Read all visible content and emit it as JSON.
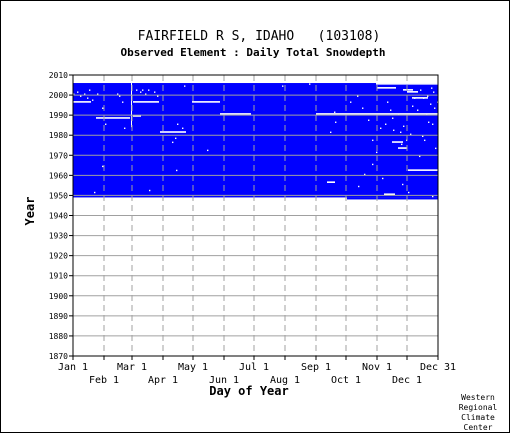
{
  "chart_data": {
    "type": "heatmap",
    "title": "FAIRFIELD R S, IDAHO   (103108)",
    "subtitle": "Observed Element : Daily Total Snowdepth",
    "xlabel": "Day of Year",
    "ylabel": "Year",
    "x_range": [
      1,
      365
    ],
    "ylim": [
      1870,
      2010
    ],
    "y_ticks": [
      2010,
      2000,
      1990,
      1980,
      1970,
      1960,
      1950,
      1940,
      1930,
      1920,
      1910,
      1900,
      1890,
      1880,
      1870
    ],
    "x_ticks_upper": [
      {
        "label": "Jan 1",
        "day": 1
      },
      {
        "label": "Mar 1",
        "day": 60
      },
      {
        "label": "May 1",
        "day": 121
      },
      {
        "label": "Jul 1",
        "day": 182
      },
      {
        "label": "Sep 1",
        "day": 244
      },
      {
        "label": "Nov 1",
        "day": 305
      },
      {
        "label": "Dec 31",
        "day": 365
      }
    ],
    "x_ticks_lower": [
      {
        "label": "Feb 1",
        "day": 32
      },
      {
        "label": "Apr 1",
        "day": 91
      },
      {
        "label": "Jun 1",
        "day": 152
      },
      {
        "label": "Aug 1",
        "day": 213
      },
      {
        "label": "Oct 1",
        "day": 274
      },
      {
        "label": "Dec 1",
        "day": 335
      }
    ],
    "grid": true,
    "data_color": "#0000ff",
    "record": {
      "start_year": 1948,
      "end_year": 2005
    },
    "end_partial": {
      "year": 1948,
      "from_day": 275
    },
    "missing_year_segments": [
      {
        "year": 1962,
        "from_day": 336,
        "to_day": 365
      },
      {
        "year": 1956,
        "from_day": 255,
        "to_day": 262
      },
      {
        "year": 1990,
        "from_day": 148,
        "to_day": 178
      },
      {
        "year": 1990,
        "from_day": 244,
        "to_day": 365
      },
      {
        "year": 2005,
        "from_day": 304,
        "to_day": 365
      },
      {
        "year": 1988,
        "from_day": 24,
        "to_day": 57
      },
      {
        "year": 1996,
        "from_day": 1,
        "to_day": 18
      },
      {
        "year": 1996,
        "from_day": 61,
        "to_day": 86
      },
      {
        "year": 1996,
        "from_day": 120,
        "to_day": 147
      },
      {
        "year": 1981,
        "from_day": 88,
        "to_day": 113
      },
      {
        "year": 2003,
        "from_day": 305,
        "to_day": 323
      },
      {
        "year": 2002,
        "from_day": 331,
        "to_day": 340
      },
      {
        "year": 2001,
        "from_day": 335,
        "to_day": 345
      },
      {
        "year": 1998,
        "from_day": 340,
        "to_day": 355
      },
      {
        "year": 1976,
        "from_day": 320,
        "to_day": 330
      },
      {
        "year": 1973,
        "from_day": 326,
        "to_day": 334
      },
      {
        "year": 1950,
        "from_day": 312,
        "to_day": 322
      },
      {
        "year": 1989,
        "from_day": 61,
        "to_day": 68
      }
    ],
    "missing_day_columns": [
      {
        "day": 59,
        "from_year": 1984,
        "to_year": 2005
      }
    ],
    "missing_points": [
      [
        1,
        2000
      ],
      [
        5,
        2001
      ],
      [
        8,
        1999
      ],
      [
        12,
        2000
      ],
      [
        15,
        1998
      ],
      [
        17,
        2002
      ],
      [
        20,
        1997
      ],
      [
        25,
        2000
      ],
      [
        30,
        1993
      ],
      [
        33,
        1985
      ],
      [
        22,
        1951
      ],
      [
        30,
        1964
      ],
      [
        45,
        2000
      ],
      [
        47,
        1999
      ],
      [
        50,
        1996
      ],
      [
        52,
        1983
      ],
      [
        64,
        2002
      ],
      [
        68,
        2001
      ],
      [
        70,
        2002
      ],
      [
        73,
        2000
      ],
      [
        76,
        2002
      ],
      [
        82,
        2001
      ],
      [
        85,
        1999
      ],
      [
        77,
        1952
      ],
      [
        100,
        1976
      ],
      [
        104,
        1962
      ],
      [
        103,
        1978
      ],
      [
        105,
        1985
      ],
      [
        110,
        1983
      ],
      [
        112,
        2004
      ],
      [
        135,
        1972
      ],
      [
        210,
        2004
      ],
      [
        237,
        2005
      ],
      [
        258,
        1981
      ],
      [
        262,
        1991
      ],
      [
        263,
        1986
      ],
      [
        278,
        1996
      ],
      [
        285,
        1999
      ],
      [
        290,
        1993
      ],
      [
        296,
        1987
      ],
      [
        300,
        1977
      ],
      [
        304,
        1971
      ],
      [
        308,
        1983
      ],
      [
        313,
        1985
      ],
      [
        315,
        1996
      ],
      [
        318,
        1992
      ],
      [
        320,
        1988
      ],
      [
        326,
        1990
      ],
      [
        328,
        1981
      ],
      [
        331,
        1984
      ],
      [
        334,
        1977
      ],
      [
        338,
        1980
      ],
      [
        340,
        1994
      ],
      [
        342,
        1998
      ],
      [
        345,
        1992
      ],
      [
        350,
        1979
      ],
      [
        352,
        1977
      ],
      [
        354,
        1990
      ],
      [
        356,
        1986
      ],
      [
        358,
        1995
      ],
      [
        360,
        1985
      ],
      [
        362,
        1993
      ],
      [
        363,
        1973
      ],
      [
        365,
        1996
      ],
      [
        321,
        1982
      ],
      [
        329,
        1975
      ],
      [
        347,
        1969
      ],
      [
        300,
        1965
      ],
      [
        292,
        1960
      ],
      [
        310,
        1958
      ],
      [
        330,
        1955
      ],
      [
        360,
        1949
      ],
      [
        336,
        1951
      ],
      [
        286,
        1954
      ],
      [
        355,
        1999
      ],
      [
        361,
        2001
      ],
      [
        359,
        2003
      ],
      [
        348,
        2002
      ],
      [
        351,
        1998
      ]
    ]
  },
  "credit": {
    "line1": "Western",
    "line2": "Regional",
    "line3": "Climate",
    "line4": "Center"
  }
}
